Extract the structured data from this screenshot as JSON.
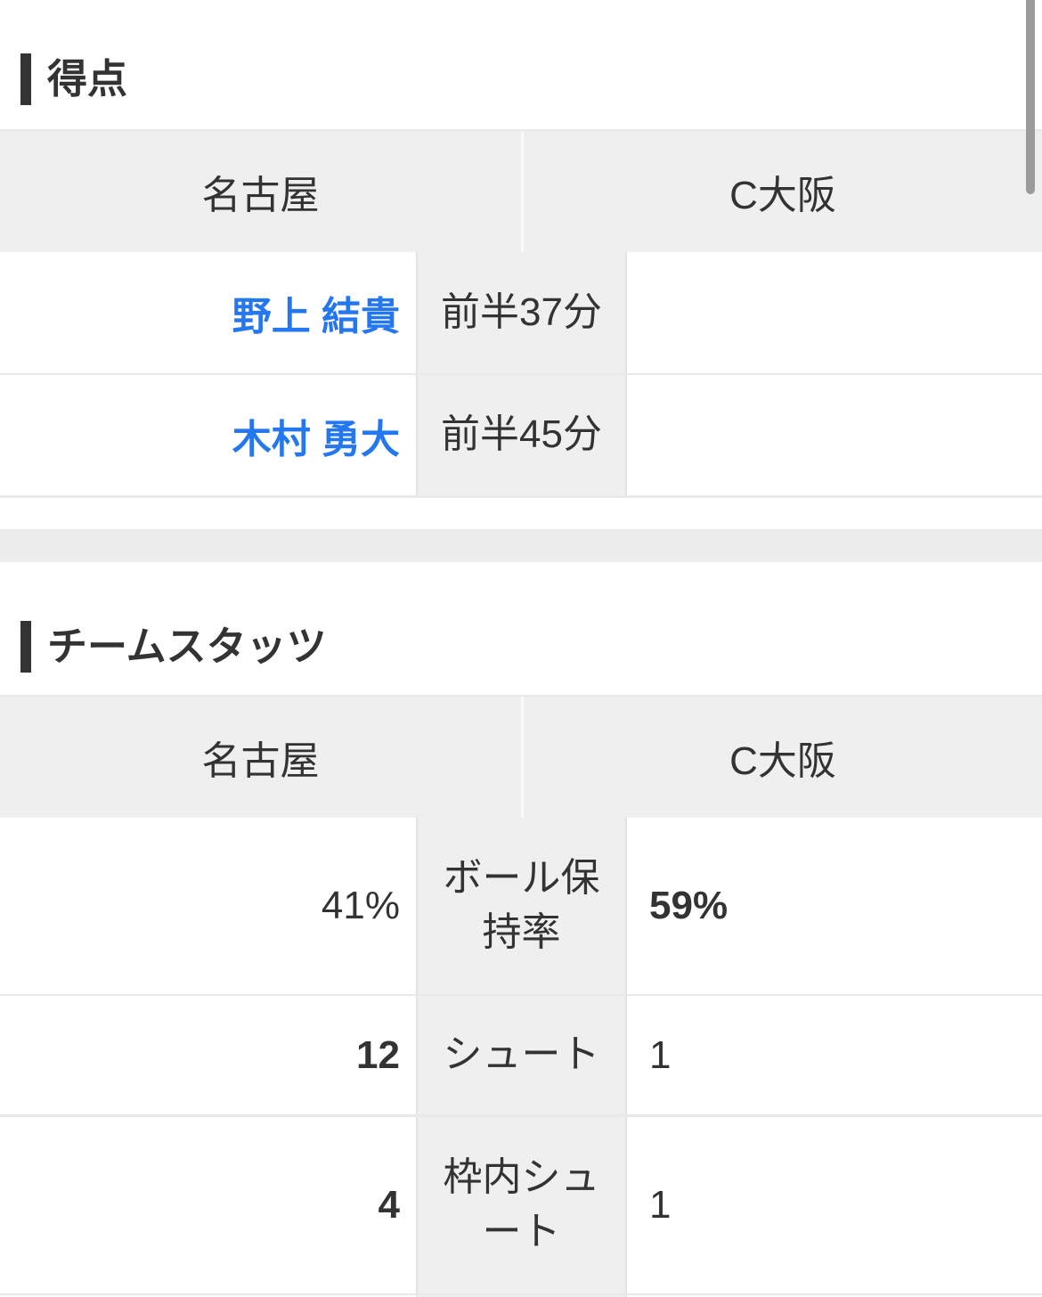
{
  "colors": {
    "text": "#333333",
    "player_link": "#2577f0",
    "cell_bg": "#efefef",
    "row_border": "#e9e9e9",
    "heading_bar": "#333333",
    "separator_band": "#ececec",
    "scrollbar": "#9b9b9b"
  },
  "goals": {
    "title": "得点",
    "header": {
      "home": "名古屋",
      "away": "C大阪"
    },
    "rows": [
      {
        "home_player": "野上 結貴",
        "time": "前半37分",
        "away_player": ""
      },
      {
        "home_player": "木村 勇大",
        "time": "前半45分",
        "away_player": ""
      }
    ]
  },
  "stats": {
    "title": "チームスタッツ",
    "header": {
      "home": "名古屋",
      "away": "C大阪"
    },
    "rows": [
      {
        "home": "41%",
        "home_strong": false,
        "label": "ボール保\n持率",
        "away": "59%",
        "away_strong": true
      },
      {
        "home": "12",
        "home_strong": true,
        "label": "シュート",
        "away": "1",
        "away_strong": false
      },
      {
        "home": "4",
        "home_strong": true,
        "label": "枠内シュ\nート",
        "away": "1",
        "away_strong": false
      }
    ]
  }
}
